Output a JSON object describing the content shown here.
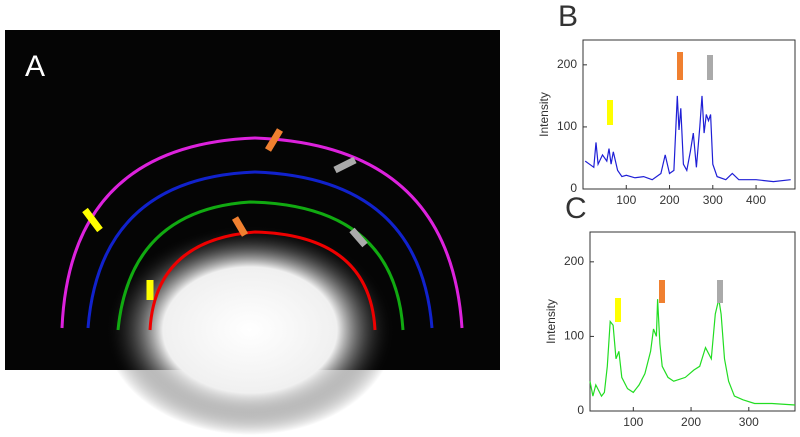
{
  "image_panel": {
    "label": "A"
  },
  "chart_data": [
    {
      "type": "line",
      "label": "B",
      "ylabel": "Intensity",
      "color": "#1f1fd6",
      "x": [
        5,
        15,
        25,
        30,
        35,
        45,
        55,
        60,
        65,
        70,
        80,
        90,
        100,
        120,
        140,
        160,
        180,
        190,
        200,
        210,
        218,
        222,
        226,
        232,
        240,
        248,
        255,
        262,
        270,
        275,
        280,
        285,
        290,
        295,
        300,
        310,
        330,
        345,
        360,
        400,
        440,
        480
      ],
      "values": [
        45,
        40,
        35,
        75,
        40,
        55,
        45,
        65,
        40,
        60,
        30,
        20,
        22,
        18,
        20,
        15,
        25,
        55,
        25,
        30,
        150,
        95,
        130,
        40,
        30,
        60,
        90,
        35,
        100,
        150,
        90,
        120,
        110,
        120,
        40,
        20,
        15,
        25,
        15,
        15,
        12,
        15
      ],
      "xlim": [
        0,
        490
      ],
      "ylim": [
        0,
        240
      ],
      "xticks": [
        100,
        200,
        300,
        400
      ],
      "yticks": [
        0,
        100,
        200
      ]
    },
    {
      "type": "line",
      "label": "C",
      "ylabel": "Intensity",
      "color": "#22dd22",
      "x": [
        25,
        30,
        35,
        45,
        50,
        55,
        60,
        65,
        70,
        75,
        80,
        90,
        100,
        110,
        120,
        130,
        135,
        140,
        142,
        146,
        150,
        160,
        170,
        190,
        205,
        215,
        225,
        235,
        242,
        248,
        252,
        258,
        265,
        275,
        290,
        310,
        340,
        380
      ],
      "values": [
        40,
        20,
        35,
        20,
        25,
        60,
        120,
        115,
        70,
        80,
        45,
        30,
        25,
        35,
        50,
        80,
        110,
        100,
        150,
        90,
        60,
        45,
        40,
        45,
        55,
        60,
        85,
        70,
        130,
        150,
        130,
        70,
        40,
        20,
        15,
        10,
        10,
        8
      ],
      "xlim": [
        25,
        380
      ],
      "ylim": [
        0,
        240
      ],
      "xticks": [
        100,
        200,
        300
      ],
      "yticks": [
        0,
        100,
        200
      ]
    }
  ]
}
